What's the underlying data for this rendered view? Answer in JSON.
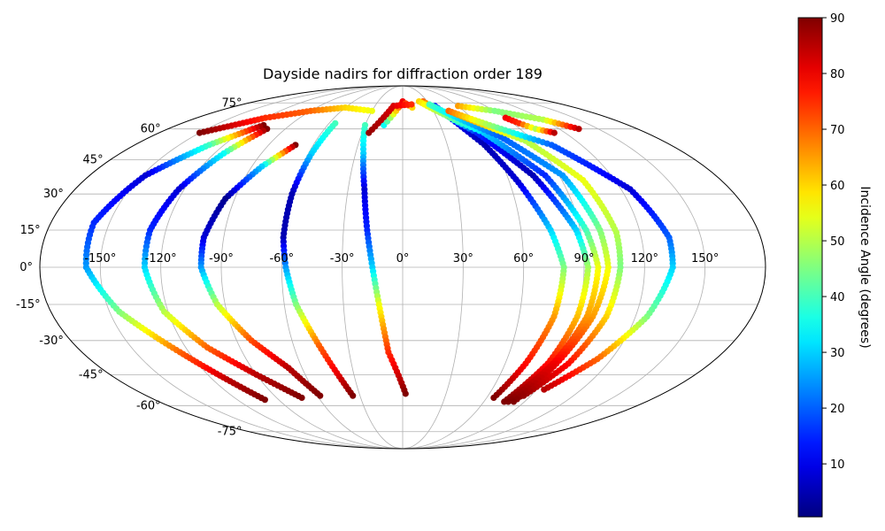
{
  "chart_data": {
    "type": "scatter",
    "projection": "mollweide",
    "title": "Dayside nadirs for diffraction order 189",
    "grid": true,
    "x_ticks": [
      "-150°",
      "-120°",
      "-90°",
      "-60°",
      "-30°",
      "0°",
      "30°",
      "60°",
      "90°",
      "120°",
      "150°"
    ],
    "y_ticks": [
      "-75°",
      "-60°",
      "-45°",
      "-30°",
      "-15°",
      "0°",
      "15°",
      "30°",
      "45°",
      "60°",
      "75°"
    ],
    "colorbar": {
      "label": "Incidence Angle (degrees)",
      "colormap": "jet",
      "range": [
        0.5,
        90
      ],
      "ticks": [
        "10",
        "20",
        "30",
        "40",
        "50",
        "60",
        "70",
        "80",
        "90"
      ]
    },
    "series": [
      {
        "lon": [
          -111,
          -130,
          -148,
          -158,
          -157,
          -145,
          -125,
          -110,
          -100
        ],
        "lat": [
          62,
          52,
          38,
          18,
          0,
          -18,
          -35,
          -48,
          -57
        ]
      },
      {
        "lon": [
          -104,
          -114,
          -123,
          -128,
          -128,
          -122,
          -108,
          -90,
          -72
        ],
        "lat": [
          60,
          48,
          32,
          15,
          0,
          -18,
          -33,
          -45,
          -56
        ]
      },
      {
        "lon": [
          -72,
          -84,
          -95,
          -100,
          -100,
          -94,
          -82,
          -68,
          -58
        ],
        "lat": [
          52,
          42,
          28,
          12,
          0,
          -15,
          -30,
          -42,
          -55
        ]
      },
      {
        "lon": [
          -55,
          -58,
          -60,
          -60,
          -58,
          -54,
          -46,
          -35
        ],
        "lat": [
          63,
          48,
          30,
          12,
          0,
          -15,
          -32,
          -55
        ]
      },
      {
        "lon": [
          -30,
          -25,
          -21,
          -18,
          -15,
          -12,
          -8,
          2
        ],
        "lat": [
          62,
          48,
          32,
          15,
          0,
          -15,
          -35,
          -54
        ]
      },
      {
        "lon": [
          -150,
          -120,
          -90,
          -60,
          -30
        ],
        "lat": [
          58,
          66,
          70,
          72,
          70
        ]
      },
      {
        "lon": [
          -15,
          0,
          10
        ],
        "lat": [
          62,
          76,
          72
        ]
      },
      {
        "lon": [
          -25,
          -10,
          10
        ],
        "lat": [
          58,
          73,
          74
        ]
      },
      {
        "lon": [
          35,
          55,
          65,
          75,
          80,
          78,
          72,
          65
        ],
        "lat": [
          73,
          52,
          35,
          15,
          0,
          -20,
          -40,
          -56
        ]
      },
      {
        "lon": [
          25,
          55,
          75,
          88,
          92,
          90,
          85,
          75
        ],
        "lat": [
          76,
          58,
          38,
          15,
          0,
          -20,
          -40,
          -58
        ]
      },
      {
        "lon": [
          20,
          60,
          82,
          93,
          97,
          95,
          88,
          78
        ],
        "lat": [
          76,
          58,
          38,
          15,
          0,
          -20,
          -40,
          -58
        ]
      },
      {
        "lon": [
          30,
          70,
          92,
          100,
          102,
          98,
          90,
          82
        ],
        "lat": [
          74,
          56,
          38,
          15,
          0,
          -20,
          -40,
          -58
        ]
      },
      {
        "lon": [
          45,
          85,
          102,
          108,
          108,
          105,
          97,
          85
        ],
        "lat": [
          70,
          54,
          36,
          14,
          0,
          -20,
          -40,
          -55
        ]
      },
      {
        "lon": [
          45,
          100,
          125,
          134,
          134,
          126,
          112,
          95
        ],
        "lat": [
          70,
          52,
          32,
          12,
          0,
          -20,
          -38,
          -52
        ]
      },
      {
        "lon": [
          60,
          90,
          120,
          135
        ],
        "lat": [
          73,
          70,
          65,
          60
        ]
      },
      {
        "lon": [
          90,
          95,
          102,
          112
        ],
        "lat": [
          66,
          63,
          60,
          58
        ]
      }
    ],
    "incidence": [
      [
        90,
        40,
        8,
        15,
        25,
        45,
        70,
        85,
        90
      ],
      [
        90,
        35,
        8,
        15,
        30,
        50,
        70,
        85,
        90
      ],
      [
        90,
        30,
        2,
        8,
        25,
        50,
        72,
        85,
        90
      ],
      [
        40,
        30,
        5,
        5,
        25,
        45,
        70,
        90
      ],
      [
        40,
        30,
        8,
        15,
        30,
        55,
        75,
        90
      ],
      [
        90,
        75,
        70,
        60,
        55
      ],
      [
        35,
        80,
        60
      ],
      [
        88,
        82,
        75
      ],
      [
        15,
        5,
        8,
        30,
        45,
        65,
        78,
        90
      ],
      [
        70,
        15,
        5,
        30,
        48,
        62,
        78,
        90
      ],
      [
        60,
        30,
        15,
        40,
        55,
        65,
        80,
        90
      ],
      [
        40,
        20,
        25,
        45,
        55,
        65,
        80,
        90
      ],
      [
        70,
        50,
        55,
        50,
        45,
        60,
        78,
        88
      ],
      [
        70,
        20,
        8,
        20,
        30,
        45,
        70,
        85
      ],
      [
        65,
        45,
        50,
        85
      ],
      [
        80,
        75,
        50,
        85
      ]
    ]
  }
}
